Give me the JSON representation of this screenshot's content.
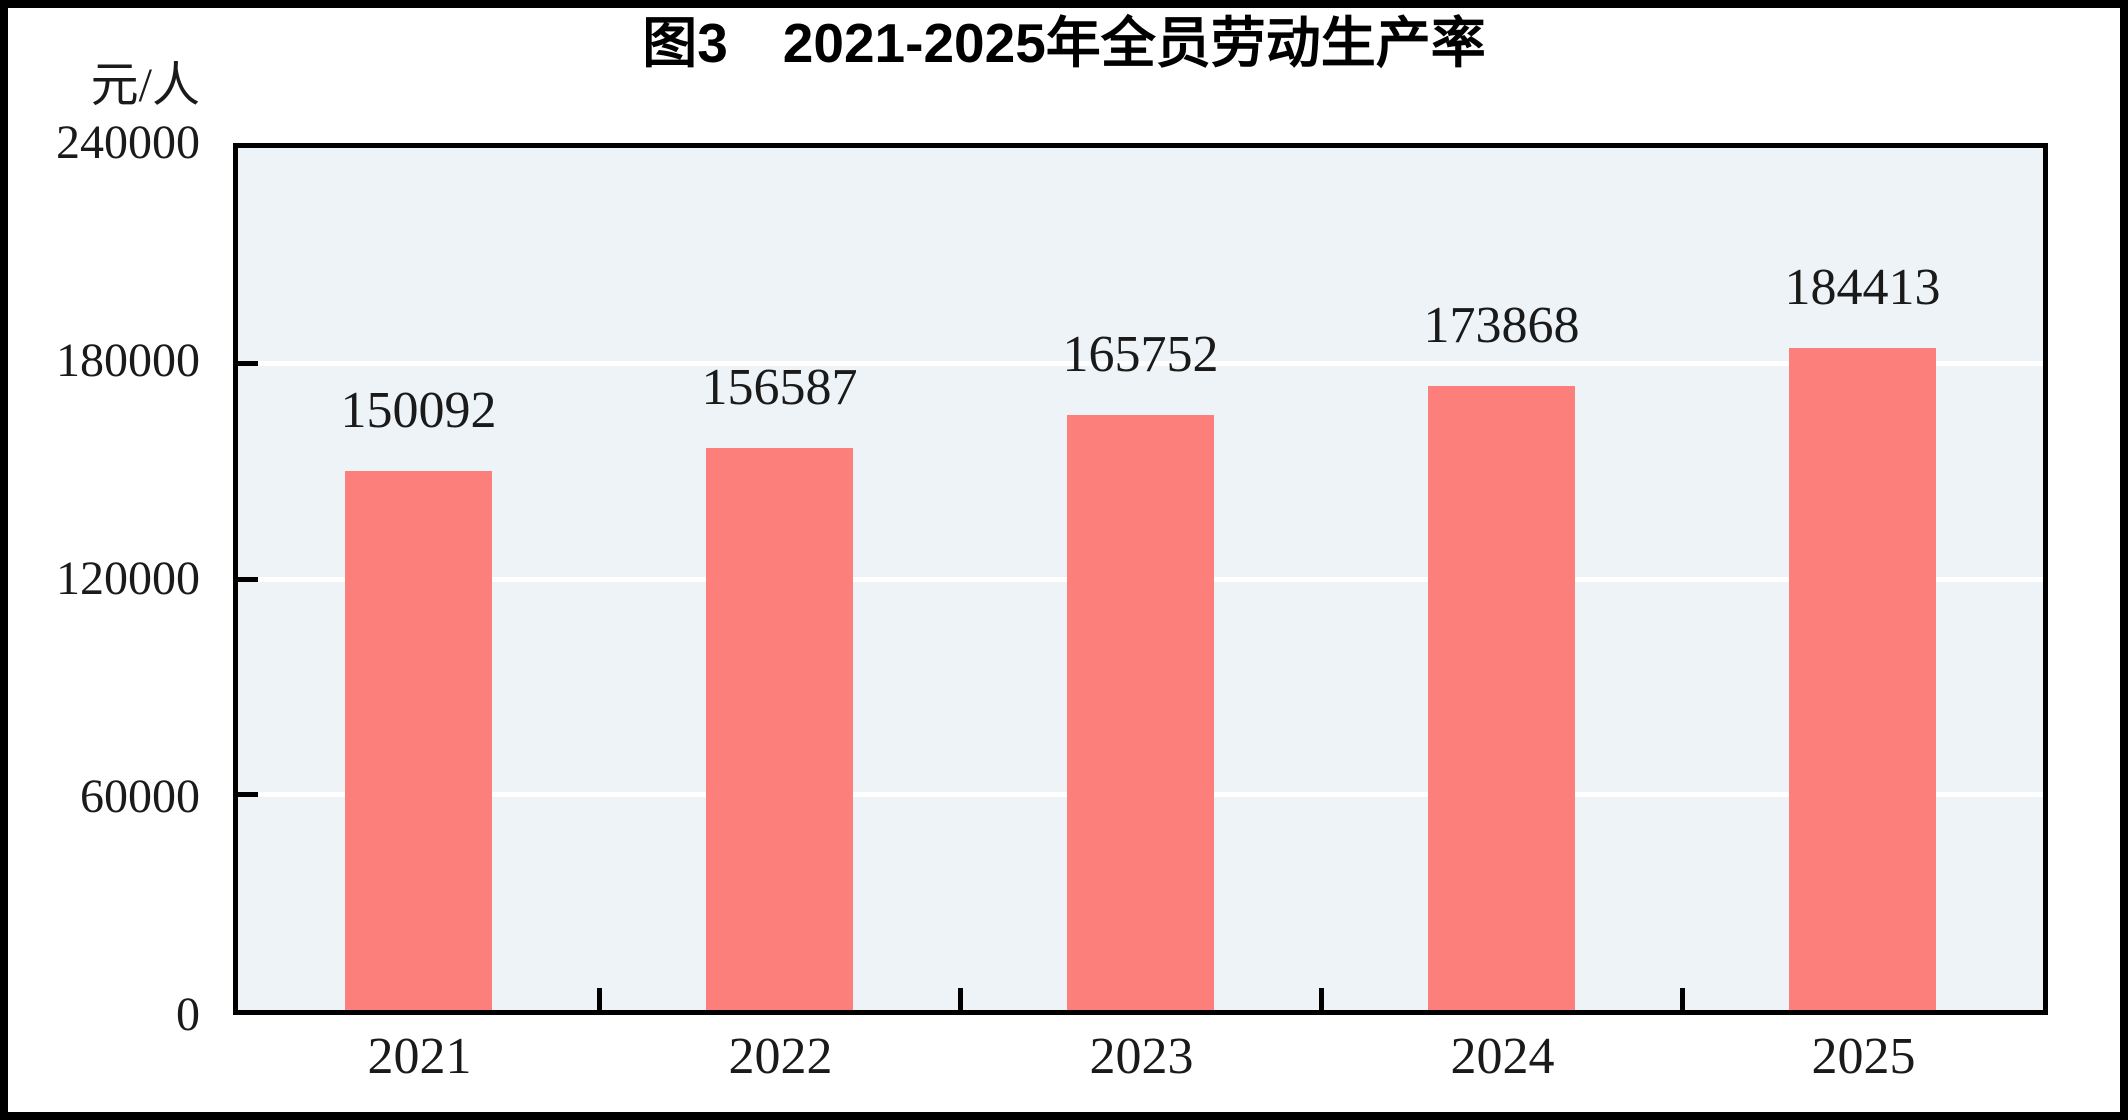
{
  "figure": {
    "title": "图3　2021-2025年全员劳动生产率",
    "y_unit_label": "元/人"
  },
  "chart_data": {
    "type": "bar",
    "title": "图3　2021-2025年全员劳动生产率",
    "categories": [
      "2021",
      "2022",
      "2023",
      "2024",
      "2025"
    ],
    "values": [
      150092,
      156587,
      165752,
      173868,
      184413
    ],
    "data_labels": [
      "150092",
      "156587",
      "165752",
      "173868",
      "184413"
    ],
    "xlabel": "",
    "ylabel": "元/人",
    "ylim": [
      0,
      240000
    ],
    "yticks": [
      0,
      60000,
      120000,
      180000,
      240000
    ],
    "ytick_labels": [
      "0",
      "60000",
      "120000",
      "180000",
      "240000"
    ],
    "grid": true,
    "legend": null,
    "colors": {
      "bar_fill": "#fd7f7b",
      "plot_background": "#edf3f7",
      "gridline": "#ffffff",
      "axis_frame": "#000000",
      "text": "#1a1a1a"
    }
  }
}
